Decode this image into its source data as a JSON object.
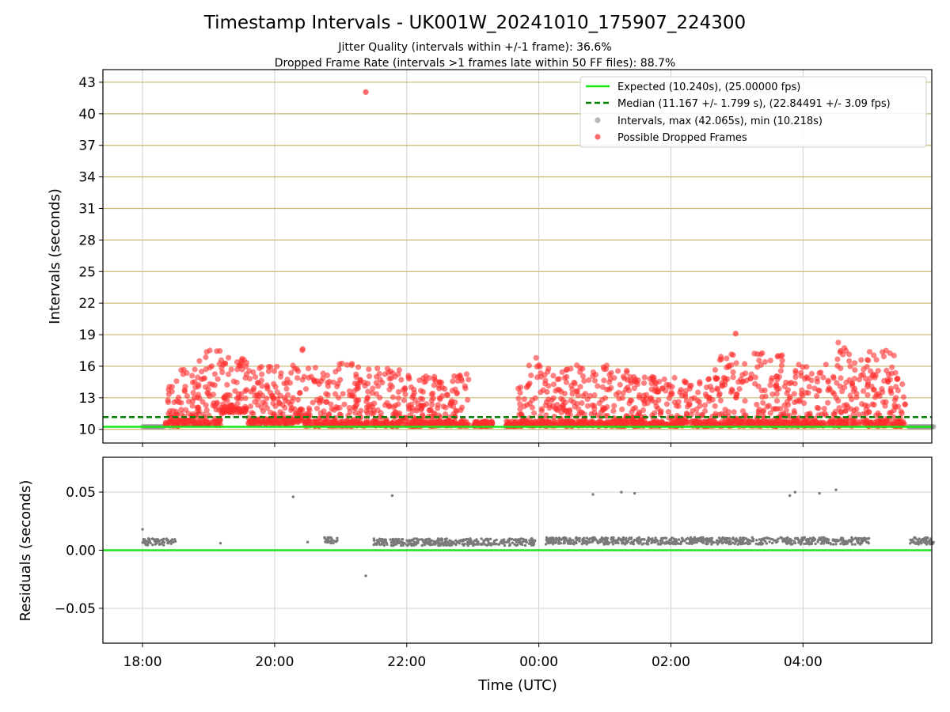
{
  "chart_data": [
    {
      "type": "scatter",
      "title": "Timestamp Intervals - UK001W_20241010_175907_224300",
      "subtitle_1": "Jitter Quality (intervals within +/-1 frame): 36.6%",
      "subtitle_2": "Dropped Frame Rate (intervals >1 frames late within 50 FF files): 88.7%",
      "ylabel": "Intervals (seconds)",
      "ylim": [
        8.7,
        44.2
      ],
      "yticks": [
        10,
        13,
        16,
        19,
        22,
        25,
        28,
        31,
        34,
        37,
        40,
        43
      ],
      "ytick_labels": [
        "10",
        "13",
        "16",
        "19",
        "22",
        "25",
        "28",
        "31",
        "34",
        "37",
        "40",
        "43"
      ],
      "horizontal_grid_color": "#c8b970",
      "legend": {
        "position": "top-right",
        "entries": [
          {
            "label": "Expected (10.240s), (25.00000 fps)",
            "style": "line",
            "color": "#18e818"
          },
          {
            "label": "Median (11.167 +/- 1.799 s), (22.84491 +/- 3.09 fps)",
            "style": "dashed-line",
            "color": "#008000"
          },
          {
            "label": "Intervals, max (42.065s), min (10.218s)",
            "style": "marker",
            "color": "#909090"
          },
          {
            "label": "Possible Dropped Frames",
            "style": "marker",
            "color": "#ff3b3b"
          }
        ]
      },
      "series": {
        "expected": 10.24,
        "median": 11.167,
        "intervals": {
          "normal_segments": [
            {
              "from": 18.0,
              "to": 18.33,
              "y": 10.25
            },
            {
              "from": 5.6,
              "to": 5.98,
              "y": 10.25
            }
          ],
          "sparse_points": [
            {
              "x": 18.42,
              "y": 10.25
            },
            {
              "x": 21.85,
              "y": 10.25
            },
            {
              "x": 23.5,
              "y": 10.25
            }
          ]
        },
        "dropped_frames": {
          "outliers": [
            {
              "x": 21.38,
              "y": 42.065
            },
            {
              "x": 2.98,
              "y": 19.1
            }
          ],
          "density_profile": [
            {
              "from": 18.35,
              "to": 18.55,
              "lo": 10.3,
              "hi": 14.6
            },
            {
              "from": 18.55,
              "to": 18.85,
              "lo": 10.4,
              "hi": 15.9
            },
            {
              "from": 18.85,
              "to": 19.2,
              "lo": 10.4,
              "hi": 17.9
            },
            {
              "from": 19.2,
              "to": 19.6,
              "lo": 11.6,
              "hi": 17.0
            },
            {
              "from": 19.6,
              "to": 20.3,
              "lo": 10.5,
              "hi": 16.3
            },
            {
              "from": 20.3,
              "to": 20.45,
              "lo": 10.6,
              "hi": 17.7
            },
            {
              "from": 20.45,
              "to": 20.95,
              "lo": 10.3,
              "hi": 16.1
            },
            {
              "from": 20.95,
              "to": 21.35,
              "lo": 10.3,
              "hi": 16.3
            },
            {
              "from": 21.35,
              "to": 21.9,
              "lo": 10.3,
              "hi": 15.8
            },
            {
              "from": 21.9,
              "to": 22.4,
              "lo": 10.3,
              "hi": 15.1
            },
            {
              "from": 22.4,
              "to": 22.95,
              "lo": 10.3,
              "hi": 15.3
            },
            {
              "from": 23.0,
              "to": 23.3,
              "lo": 10.3,
              "hi": 10.7
            },
            {
              "from": 23.5,
              "to": 23.65,
              "lo": 10.3,
              "hi": 10.5
            },
            {
              "from": 23.65,
              "to": 23.85,
              "lo": 10.3,
              "hi": 14.5
            },
            {
              "from": 23.85,
              "to": 24.1,
              "lo": 10.3,
              "hi": 16.9
            },
            {
              "from": 0.1,
              "to": 1.4,
              "lo": 10.3,
              "hi": 16.1
            },
            {
              "from": 1.4,
              "to": 2.6,
              "lo": 10.3,
              "hi": 15.0
            },
            {
              "from": 2.6,
              "to": 3.7,
              "lo": 10.3,
              "hi": 17.3
            },
            {
              "from": 3.7,
              "to": 4.5,
              "lo": 10.3,
              "hi": 16.3
            },
            {
              "from": 4.5,
              "to": 4.85,
              "lo": 10.3,
              "hi": 18.4
            },
            {
              "from": 4.85,
              "to": 5.4,
              "lo": 10.3,
              "hi": 17.5
            },
            {
              "from": 5.4,
              "to": 5.55,
              "lo": 10.3,
              "hi": 15.0
            }
          ]
        }
      }
    },
    {
      "type": "scatter",
      "ylabel": "Residuals (seconds)",
      "xlabel": "Time (UTC)",
      "ylim": [
        -0.08,
        0.08
      ],
      "yticks": [
        -0.05,
        0.0,
        0.05
      ],
      "ytick_labels": [
        "−0.05",
        "0.00",
        "0.05"
      ],
      "xlim_hours_from_1800": [
        -0.6,
        11.95
      ],
      "xticks": [
        "18:00",
        "20:00",
        "22:00",
        "00:00",
        "02:00",
        "04:00"
      ],
      "zero_line_color": "#18e818",
      "point_color": "#7a7a7a",
      "residuals": {
        "baseline": 0.008,
        "clusters": [
          {
            "from": 18.0,
            "to": 18.5,
            "y": 0.007
          },
          {
            "from": 20.75,
            "to": 20.95,
            "y": 0.008
          },
          {
            "from": 21.5,
            "to": 23.95,
            "y": 0.007
          },
          {
            "from": 0.1,
            "to": 5.0,
            "y": 0.008
          },
          {
            "from": 5.6,
            "to": 5.98,
            "y": 0.008
          }
        ],
        "outliers": [
          {
            "x": 18.0,
            "y": 0.018
          },
          {
            "x": 19.18,
            "y": 0.006
          },
          {
            "x": 20.28,
            "y": 0.046
          },
          {
            "x": 20.5,
            "y": 0.007
          },
          {
            "x": 21.38,
            "y": -0.022
          },
          {
            "x": 21.78,
            "y": 0.047
          },
          {
            "x": 0.82,
            "y": 0.048
          },
          {
            "x": 1.25,
            "y": 0.05
          },
          {
            "x": 1.45,
            "y": 0.049
          },
          {
            "x": 3.8,
            "y": 0.047
          },
          {
            "x": 3.88,
            "y": 0.05
          },
          {
            "x": 4.25,
            "y": 0.049
          },
          {
            "x": 4.5,
            "y": 0.052
          }
        ]
      }
    }
  ]
}
